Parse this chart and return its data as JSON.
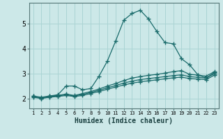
{
  "xlabel": "Humidex (Indice chaleur)",
  "background_color": "#cce8e8",
  "grid_color": "#aad4d4",
  "line_color": "#1a6b6b",
  "x_values": [
    1,
    2,
    3,
    4,
    5,
    6,
    7,
    8,
    9,
    10,
    11,
    12,
    13,
    14,
    15,
    16,
    17,
    18,
    19,
    20,
    21,
    22,
    23
  ],
  "series1": [
    2.1,
    2.0,
    2.1,
    2.15,
    2.5,
    2.5,
    2.35,
    2.4,
    2.9,
    3.5,
    4.3,
    5.15,
    5.42,
    5.55,
    5.2,
    4.7,
    4.25,
    4.2,
    3.6,
    3.35,
    2.95,
    2.82,
    3.05
  ],
  "series2": [
    2.1,
    2.05,
    2.1,
    2.12,
    2.18,
    2.12,
    2.2,
    2.28,
    2.38,
    2.5,
    2.6,
    2.72,
    2.82,
    2.88,
    2.93,
    2.97,
    3.02,
    3.08,
    3.12,
    2.97,
    2.94,
    2.9,
    3.08
  ],
  "series3": [
    2.08,
    2.02,
    2.08,
    2.1,
    2.15,
    2.1,
    2.16,
    2.24,
    2.33,
    2.43,
    2.52,
    2.62,
    2.7,
    2.76,
    2.8,
    2.84,
    2.88,
    2.92,
    2.95,
    2.88,
    2.85,
    2.82,
    3.0
  ],
  "series4": [
    2.05,
    2.0,
    2.05,
    2.08,
    2.12,
    2.08,
    2.12,
    2.2,
    2.28,
    2.37,
    2.46,
    2.54,
    2.62,
    2.67,
    2.71,
    2.75,
    2.79,
    2.83,
    2.86,
    2.8,
    2.78,
    2.76,
    2.94
  ],
  "ylim": [
    1.6,
    5.85
  ],
  "yticks": [
    2,
    3,
    4,
    5
  ],
  "xticks": [
    1,
    2,
    3,
    4,
    5,
    6,
    7,
    8,
    9,
    10,
    11,
    12,
    13,
    14,
    15,
    16,
    17,
    18,
    19,
    20,
    21,
    22,
    23
  ]
}
